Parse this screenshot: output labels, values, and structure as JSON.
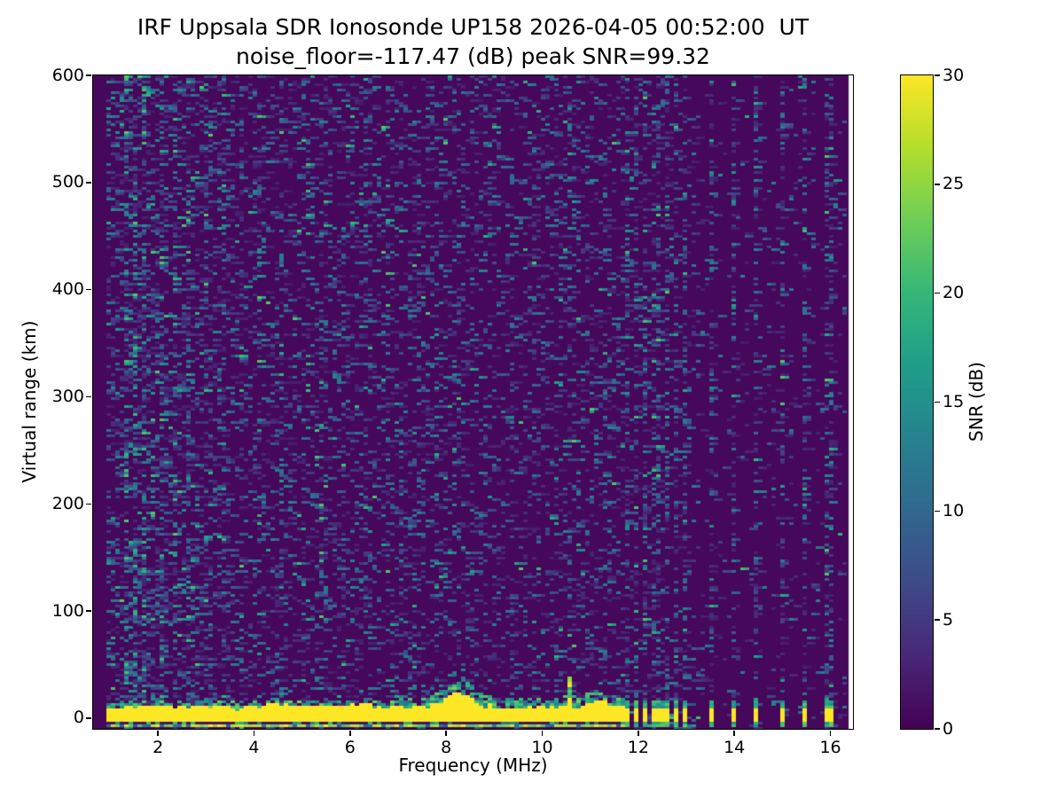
{
  "chart_data": {
    "type": "heatmap",
    "title": "IRF Uppsala SDR Ionosonde UP158 2026-04-05 00:52:00  UT",
    "subtitle": "noise_floor=-117.47 (dB) peak SNR=99.32",
    "xlabel": "Frequency (MHz)",
    "ylabel": "Virtual range (km)",
    "xlim": [
      0.65,
      16.47
    ],
    "ylim": [
      -10,
      600
    ],
    "x_ticks": [
      2,
      4,
      6,
      8,
      10,
      12,
      14,
      16
    ],
    "y_ticks": [
      0,
      100,
      200,
      300,
      400,
      500,
      600
    ],
    "grid": false,
    "colormap": "viridis",
    "colorbar": {
      "label": "SNR (dB)",
      "vmin": 0,
      "vmax": 30,
      "ticks": [
        0,
        5,
        10,
        15,
        20,
        25,
        30
      ],
      "position": "right"
    },
    "data_freq_range": [
      0.97,
      16.38
    ],
    "echo_band": {
      "freq_start": 1.0,
      "freq_end": 11.68,
      "top_km": 11,
      "bottom_km": -2.5,
      "gap_km": [
        -5,
        -2.5
      ],
      "second_trace_km": [
        -7.6,
        -5
      ]
    },
    "bulge": {
      "freq": 8.27,
      "extra_km": 13,
      "width": 0.26
    },
    "spike": {
      "freq": 10.55,
      "top_km": 38
    },
    "dash_frequencies": [
      11.76,
      11.94,
      12.12,
      12.3,
      12.46,
      12.63,
      12.81,
      13.0,
      13.5,
      13.99,
      14.48,
      14.97,
      15.47,
      15.97
    ],
    "interference_stripes": [
      {
        "f": 1.38,
        "boost": 0.2,
        "teal": 0.15
      },
      {
        "f": 1.55,
        "boost": 0.28,
        "teal": 0.22
      },
      {
        "f": 1.68,
        "boost": 0.2,
        "teal": 0.15
      },
      {
        "f": 2.05,
        "boost": 0.16,
        "teal": 0.08
      },
      {
        "f": 2.33,
        "boost": 0.12,
        "teal": 0.06
      },
      {
        "f": 2.62,
        "boost": 0.16,
        "teal": 0.1
      },
      {
        "f": 3.05,
        "boost": 0.1,
        "teal": 0.04
      },
      {
        "f": 3.4,
        "boost": 0.12,
        "teal": 0.05
      },
      {
        "f": 3.75,
        "boost": 0.08,
        "teal": 0.04
      },
      {
        "f": 4.12,
        "boost": 0.08,
        "teal": 0.03
      },
      {
        "f": 4.55,
        "boost": 0.1,
        "teal": 0.04
      },
      {
        "f": 5.0,
        "boost": 0.07,
        "teal": 0.03
      },
      {
        "f": 5.45,
        "boost": 0.09,
        "teal": 0.04
      },
      {
        "f": 5.88,
        "boost": 0.07,
        "teal": 0.03
      },
      {
        "f": 6.3,
        "boost": 0.09,
        "teal": 0.04
      },
      {
        "f": 6.82,
        "boost": 0.07,
        "teal": 0.03
      },
      {
        "f": 7.3,
        "boost": 0.06,
        "teal": 0.03
      },
      {
        "f": 7.82,
        "boost": 0.06,
        "teal": 0.02
      },
      {
        "f": 8.3,
        "boost": 0.06,
        "teal": 0.02
      },
      {
        "f": 8.85,
        "boost": 0.05,
        "teal": 0.02
      },
      {
        "f": 9.35,
        "boost": 0.06,
        "teal": 0.02
      },
      {
        "f": 9.85,
        "boost": 0.05,
        "teal": 0.02
      },
      {
        "f": 10.33,
        "boost": 0.06,
        "teal": 0.02
      },
      {
        "f": 10.55,
        "boost": 0.1,
        "teal": 0.05
      },
      {
        "f": 11.05,
        "boost": 0.06,
        "teal": 0.03
      },
      {
        "f": 11.35,
        "boost": 0.08,
        "teal": 0.03
      }
    ],
    "noise": {
      "floor_value": 0.02,
      "density_left": 0.3,
      "density_midleft": 0.24,
      "density_mid": 0.2,
      "density_midright": 0.17,
      "density_cluster": 0.09,
      "density_right": 0.05,
      "seed": 1234567
    }
  },
  "colors": {
    "figure_background": "#ffffff",
    "text": "#000000",
    "spine": "#000000",
    "viridis_min": "#440154",
    "viridis_max": "#fde725"
  }
}
